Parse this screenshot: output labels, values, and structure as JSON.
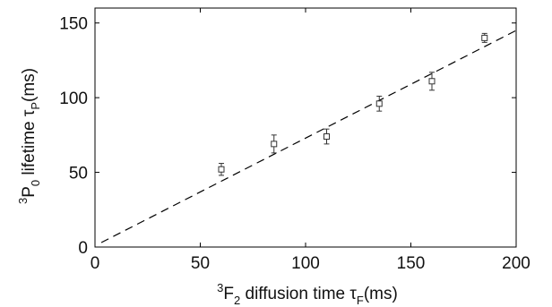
{
  "chart_data": {
    "type": "scatter",
    "title": "",
    "xlabel": {
      "sup": "3",
      "main": "F",
      "sub": "2",
      "text": " diffusion time ",
      "symbol": "τ",
      "symbol_sub": "F",
      "unit": "(ms)"
    },
    "ylabel": {
      "sup": "3",
      "main": "P",
      "sub": "0",
      "text": " lifetime ",
      "symbol": "τ",
      "symbol_sub": "P",
      "unit": "(ms)"
    },
    "xlim": [
      0,
      200
    ],
    "ylim": [
      0,
      160
    ],
    "xticks": [
      0,
      50,
      100,
      150,
      200
    ],
    "yticks": [
      0,
      50,
      100,
      150
    ],
    "grid": false,
    "series": [
      {
        "marker": "square",
        "x": [
          60,
          85,
          110,
          135,
          160,
          185
        ],
        "y": [
          52,
          69,
          74,
          96,
          111,
          140
        ],
        "yerr": [
          4,
          6,
          5,
          5,
          6,
          3
        ]
      }
    ],
    "fit_line": {
      "style": "dashed",
      "x": [
        3,
        200
      ],
      "y": [
        3,
        145
      ]
    },
    "colors": {
      "marks": "#333333",
      "axes": "#000000"
    }
  }
}
